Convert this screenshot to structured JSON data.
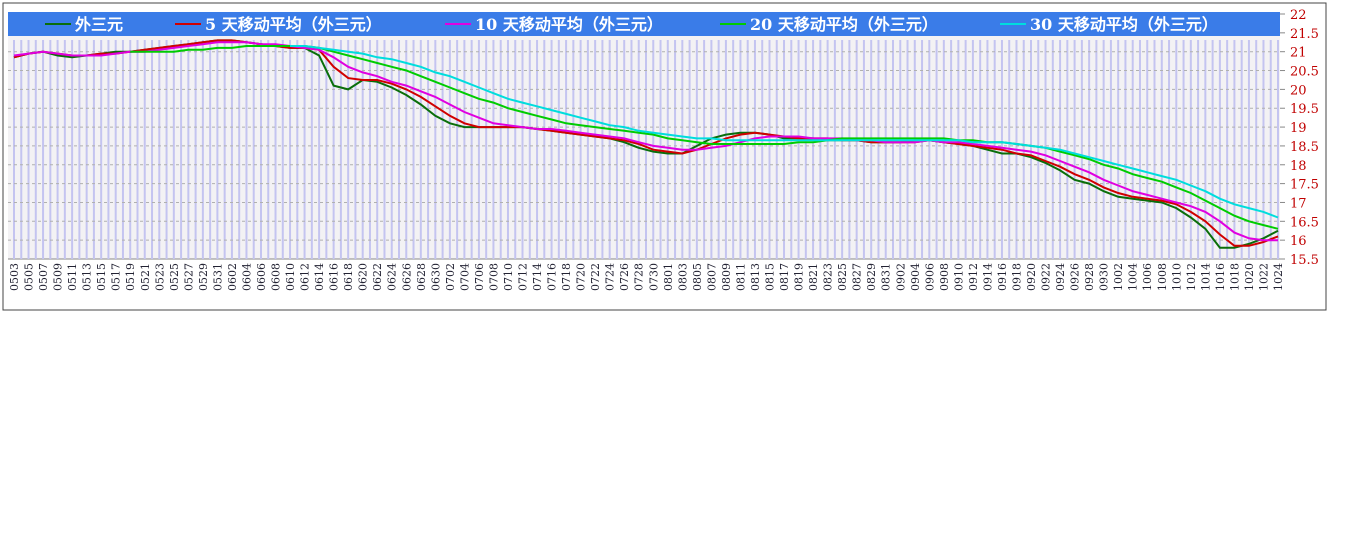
{
  "chart_data": {
    "type": "line",
    "categories": [
      "0503",
      "0505",
      "0507",
      "0509",
      "0511",
      "0513",
      "0515",
      "0517",
      "0519",
      "0521",
      "0523",
      "0525",
      "0527",
      "0529",
      "0531",
      "0602",
      "0604",
      "0606",
      "0608",
      "0610",
      "0612",
      "0614",
      "0616",
      "0618",
      "0620",
      "0622",
      "0624",
      "0626",
      "0628",
      "0630",
      "0702",
      "0704",
      "0706",
      "0708",
      "0710",
      "0712",
      "0714",
      "0716",
      "0718",
      "0720",
      "0722",
      "0724",
      "0726",
      "0728",
      "0730",
      "0801",
      "0803",
      "0805",
      "0807",
      "0809",
      "0811",
      "0813",
      "0815",
      "0817",
      "0819",
      "0821",
      "0823",
      "0825",
      "0827",
      "0829",
      "0831",
      "0902",
      "0904",
      "0906",
      "0908",
      "0910",
      "0912",
      "0914",
      "0916",
      "0918",
      "0920",
      "0922",
      "0924",
      "0926",
      "0928",
      "0930",
      "1002",
      "1004",
      "1006",
      "1008",
      "1010",
      "1012",
      "1014",
      "1016",
      "1018",
      "1020",
      "1022",
      "1024"
    ],
    "series": [
      {
        "name": "外三元",
        "color": "#0a6e0a",
        "values": [
          20.85,
          20.95,
          21.0,
          20.9,
          20.85,
          20.9,
          20.95,
          21.0,
          21.0,
          21.05,
          21.1,
          21.15,
          21.2,
          21.25,
          21.3,
          21.3,
          21.25,
          21.2,
          21.15,
          21.1,
          21.1,
          20.9,
          20.1,
          20.0,
          20.25,
          20.2,
          20.05,
          19.85,
          19.6,
          19.3,
          19.1,
          19.0,
          19.0,
          19.0,
          19.0,
          19.0,
          18.95,
          18.9,
          18.85,
          18.8,
          18.75,
          18.7,
          18.6,
          18.45,
          18.35,
          18.3,
          18.3,
          18.5,
          18.7,
          18.8,
          18.85,
          18.85,
          18.8,
          18.7,
          18.7,
          18.7,
          18.65,
          18.65,
          18.65,
          18.6,
          18.6,
          18.6,
          18.65,
          18.65,
          18.6,
          18.55,
          18.5,
          18.4,
          18.3,
          18.3,
          18.2,
          18.05,
          17.85,
          17.6,
          17.5,
          17.3,
          17.15,
          17.1,
          17.05,
          17.0,
          16.85,
          16.6,
          16.3,
          15.8,
          15.8,
          15.9,
          16.05,
          16.25
        ]
      },
      {
        "name": "5 天移动平均（外三元）",
        "color": "#d00000",
        "values": [
          20.85,
          20.95,
          21.0,
          20.95,
          20.9,
          20.9,
          20.95,
          20.95,
          21.0,
          21.05,
          21.1,
          21.15,
          21.2,
          21.25,
          21.3,
          21.3,
          21.25,
          21.2,
          21.15,
          21.1,
          21.1,
          21.05,
          20.6,
          20.3,
          20.25,
          20.25,
          20.15,
          20.0,
          19.8,
          19.55,
          19.3,
          19.1,
          19.0,
          19.0,
          19.0,
          19.0,
          18.95,
          18.9,
          18.85,
          18.8,
          18.75,
          18.7,
          18.65,
          18.55,
          18.4,
          18.35,
          18.3,
          18.4,
          18.55,
          18.7,
          18.8,
          18.85,
          18.8,
          18.75,
          18.7,
          18.7,
          18.7,
          18.65,
          18.65,
          18.6,
          18.6,
          18.6,
          18.6,
          18.65,
          18.6,
          18.55,
          18.5,
          18.45,
          18.4,
          18.3,
          18.25,
          18.1,
          17.95,
          17.75,
          17.6,
          17.4,
          17.25,
          17.15,
          17.1,
          17.05,
          16.95,
          16.75,
          16.5,
          16.15,
          15.85,
          15.85,
          15.95,
          16.1
        ]
      },
      {
        "name": "10 天移动平均（外三元）",
        "color": "#e000e0",
        "values": [
          20.9,
          20.95,
          21.0,
          20.95,
          20.9,
          20.9,
          20.9,
          20.95,
          21.0,
          21.0,
          21.05,
          21.1,
          21.15,
          21.2,
          21.25,
          21.25,
          21.25,
          21.2,
          21.2,
          21.15,
          21.1,
          21.05,
          20.85,
          20.6,
          20.45,
          20.35,
          20.2,
          20.1,
          19.95,
          19.8,
          19.6,
          19.4,
          19.25,
          19.1,
          19.05,
          19.0,
          18.95,
          18.95,
          18.9,
          18.85,
          18.8,
          18.75,
          18.7,
          18.6,
          18.5,
          18.45,
          18.4,
          18.4,
          18.45,
          18.5,
          18.6,
          18.7,
          18.75,
          18.75,
          18.75,
          18.7,
          18.7,
          18.7,
          18.65,
          18.65,
          18.6,
          18.6,
          18.6,
          18.65,
          18.6,
          18.6,
          18.55,
          18.5,
          18.45,
          18.4,
          18.35,
          18.25,
          18.1,
          17.95,
          17.8,
          17.6,
          17.45,
          17.3,
          17.2,
          17.1,
          17.0,
          16.9,
          16.75,
          16.5,
          16.2,
          16.05,
          16.0,
          16.0
        ]
      },
      {
        "name": "20 天移动平均（外三元）",
        "color": "#00cc00",
        "values": [
          null,
          null,
          null,
          null,
          null,
          null,
          null,
          null,
          21.0,
          21.0,
          21.0,
          21.0,
          21.05,
          21.05,
          21.1,
          21.1,
          21.15,
          21.15,
          21.15,
          21.15,
          21.15,
          21.1,
          21.0,
          20.9,
          20.8,
          20.7,
          20.6,
          20.5,
          20.35,
          20.2,
          20.05,
          19.9,
          19.75,
          19.65,
          19.5,
          19.4,
          19.3,
          19.2,
          19.1,
          19.05,
          19.0,
          18.95,
          18.9,
          18.85,
          18.8,
          18.7,
          18.65,
          18.6,
          18.55,
          18.55,
          18.55,
          18.55,
          18.55,
          18.55,
          18.6,
          18.6,
          18.65,
          18.7,
          18.7,
          18.7,
          18.7,
          18.7,
          18.7,
          18.7,
          18.7,
          18.65,
          18.65,
          18.6,
          18.6,
          18.55,
          18.5,
          18.45,
          18.35,
          18.25,
          18.15,
          18.0,
          17.9,
          17.75,
          17.65,
          17.55,
          17.4,
          17.25,
          17.05,
          16.85,
          16.65,
          16.5,
          16.4,
          16.3
        ]
      },
      {
        "name": "30 天移动平均（外三元）",
        "color": "#00dddd",
        "values": [
          null,
          null,
          null,
          null,
          null,
          null,
          null,
          null,
          null,
          null,
          null,
          null,
          null,
          null,
          null,
          null,
          null,
          null,
          null,
          21.15,
          21.15,
          21.1,
          21.05,
          21.0,
          20.95,
          20.85,
          20.8,
          20.7,
          20.6,
          20.45,
          20.35,
          20.2,
          20.05,
          19.9,
          19.75,
          19.65,
          19.55,
          19.45,
          19.35,
          19.25,
          19.15,
          19.05,
          19.0,
          18.9,
          18.85,
          18.8,
          18.75,
          18.7,
          18.7,
          18.65,
          18.65,
          18.65,
          18.65,
          18.65,
          18.65,
          18.65,
          18.65,
          18.65,
          18.65,
          18.65,
          18.65,
          18.65,
          18.65,
          18.65,
          18.65,
          18.65,
          18.6,
          18.6,
          18.6,
          18.55,
          18.5,
          18.45,
          18.4,
          18.3,
          18.2,
          18.1,
          18.0,
          17.9,
          17.8,
          17.7,
          17.6,
          17.45,
          17.3,
          17.1,
          16.95,
          16.85,
          16.75,
          16.6
        ]
      }
    ],
    "ylim": [
      15.5,
      22
    ],
    "yticks": [
      15.5,
      16,
      16.5,
      17,
      17.5,
      18,
      18.5,
      19,
      19.5,
      20,
      20.5,
      21,
      21.5,
      22
    ],
    "grid": true
  }
}
